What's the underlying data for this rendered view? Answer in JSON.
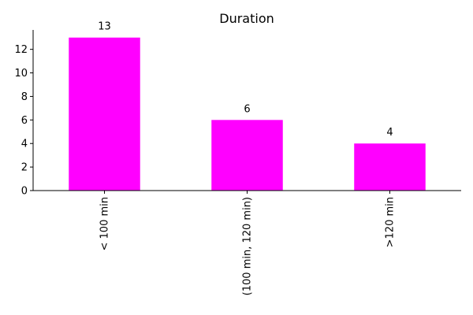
{
  "chart_data": {
    "type": "bar",
    "title": "Duration",
    "xlabel": "",
    "ylabel": "",
    "categories": [
      "< 100 min",
      "(100 min, 120 min)",
      ">120 min"
    ],
    "values": [
      13,
      6,
      4
    ],
    "data_labels": [
      "13",
      "6",
      "4"
    ],
    "yticks": [
      0,
      2,
      4,
      6,
      8,
      10,
      12
    ],
    "ylim": [
      0,
      13.65
    ],
    "bar_color": "#ff00ff",
    "grid": false,
    "legend": "none"
  }
}
